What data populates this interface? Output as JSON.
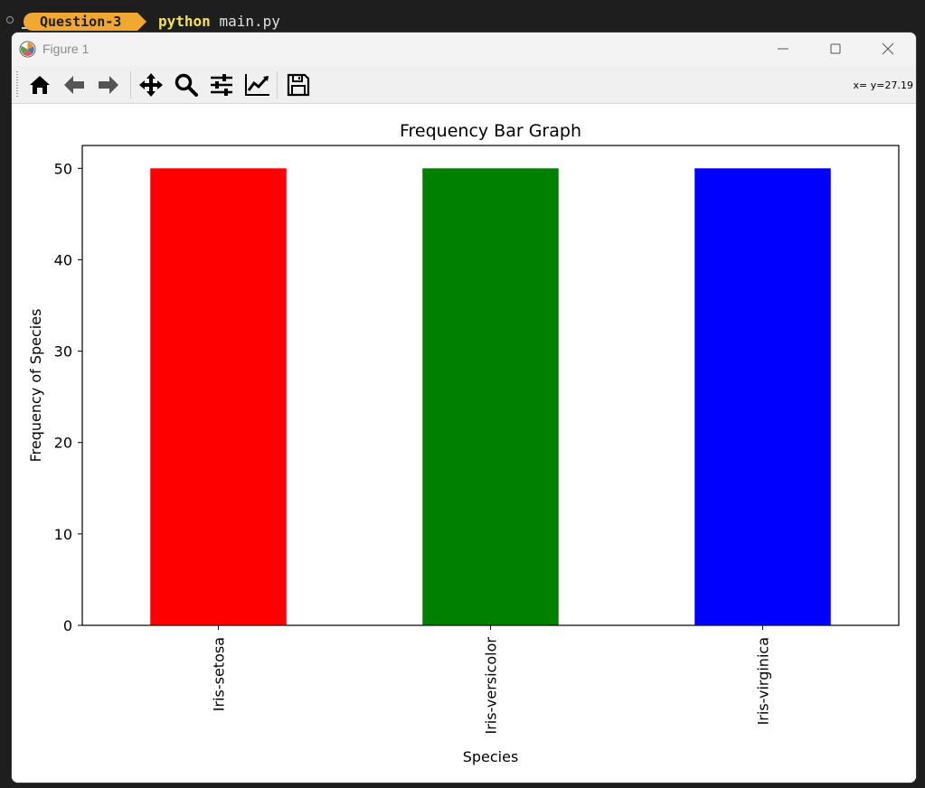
{
  "terminal": {
    "badge": "Question-3",
    "command": "python",
    "argument": "main.py"
  },
  "window": {
    "title": "Figure 1",
    "app_icon": "matplotlib-icon",
    "controls": {
      "minimize": "minimize-icon",
      "maximize": "maximize-icon",
      "close": "close-icon"
    }
  },
  "toolbar": {
    "tools": [
      {
        "name": "home",
        "icon": "home-icon"
      },
      {
        "name": "back",
        "icon": "arrow-left-icon"
      },
      {
        "name": "forward",
        "icon": "arrow-right-icon"
      },
      {
        "name": "pan",
        "icon": "move-icon"
      },
      {
        "name": "zoom",
        "icon": "zoom-icon"
      },
      {
        "name": "subplots",
        "icon": "sliders-icon"
      },
      {
        "name": "axes",
        "icon": "line-chart-icon"
      },
      {
        "name": "save",
        "icon": "save-icon"
      }
    ],
    "coords": "x= y=27.19"
  },
  "chart_data": {
    "type": "bar",
    "title": "Frequency Bar Graph",
    "xlabel": "Species",
    "ylabel": "Frequency of Species",
    "categories": [
      "Iris-setosa",
      "Iris-versicolor",
      "Iris-virginica"
    ],
    "values": [
      50,
      50,
      50
    ],
    "colors": [
      "#ff0000",
      "#008000",
      "#0000ff"
    ],
    "ylim": [
      0,
      52.5
    ],
    "yticks": [
      0,
      10,
      20,
      30,
      40,
      50
    ],
    "grid": false,
    "legend": "none"
  }
}
